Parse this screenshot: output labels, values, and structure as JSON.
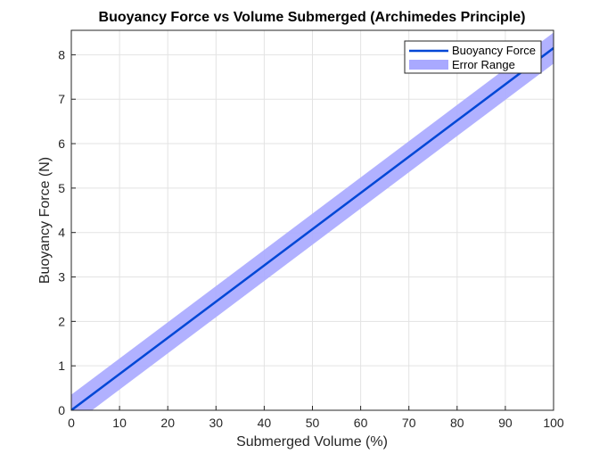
{
  "chart_data": {
    "type": "line",
    "title": "Buoyancy Force vs Volume Submerged (Archimedes Principle)",
    "xlabel": "Submerged Volume (%)",
    "ylabel": "Buoyancy Force (N)",
    "xlim": [
      0,
      100
    ],
    "ylim": [
      0,
      8.55
    ],
    "xticks": [
      "0",
      "10",
      "20",
      "30",
      "40",
      "50",
      "60",
      "70",
      "80",
      "90",
      "100"
    ],
    "yticks": [
      "0",
      "1",
      "2",
      "3",
      "4",
      "5",
      "6",
      "7",
      "8"
    ],
    "grid": true,
    "legend_position": "top-right",
    "series": [
      {
        "name": "Buoyancy Force",
        "color": "#0047d6",
        "x": [
          0,
          100
        ],
        "y": [
          0,
          8.15
        ]
      },
      {
        "name": "Error Range",
        "color": "#a9a9ff",
        "x": [
          0,
          100
        ],
        "y_lower": [
          -0.35,
          7.8
        ],
        "y_upper": [
          0.35,
          8.5
        ]
      }
    ]
  }
}
